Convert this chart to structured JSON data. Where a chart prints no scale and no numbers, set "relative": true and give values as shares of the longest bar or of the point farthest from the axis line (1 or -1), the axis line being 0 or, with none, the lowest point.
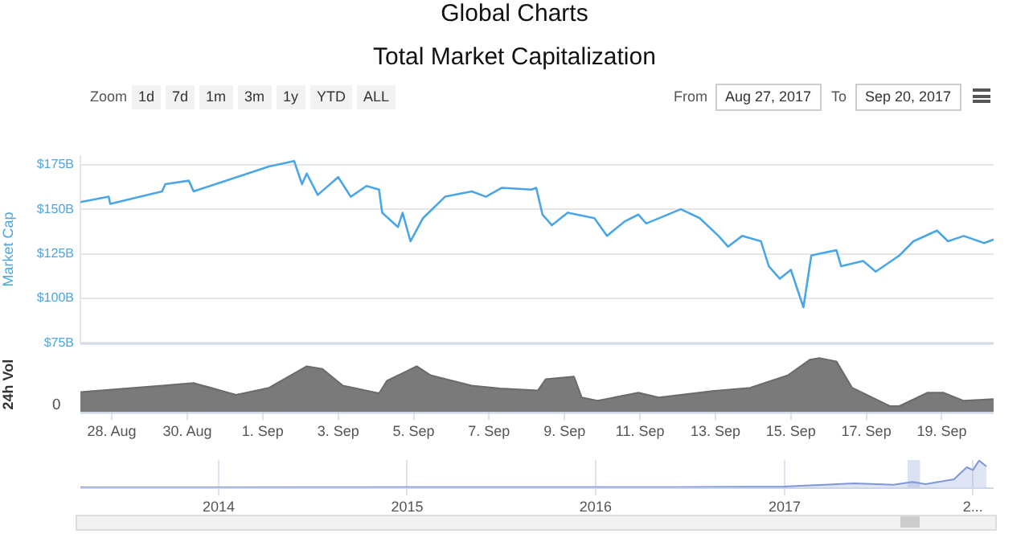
{
  "chart_data": [
    {
      "type": "line",
      "title": "Global Charts",
      "subtitle": "Total Market Capitalization",
      "ylabel": "Market Cap",
      "annotations": [
        "Zoom",
        "1d",
        "7d",
        "1m",
        "3m",
        "1y",
        "YTD",
        "ALL",
        "From",
        "Aug 27, 2017",
        "To",
        "Sep 20, 2017"
      ],
      "x": [
        "2017-08-27T04:00",
        "2017-08-27T22:00",
        "2017-08-27T23:00",
        "2017-08-29T08:00",
        "2017-08-29T10:00",
        "2017-08-30T01:00",
        "2017-08-30T04:00",
        "2017-08-31T04:00",
        "2017-09-01T04:00",
        "2017-09-01T20:00",
        "2017-09-02T01:00",
        "2017-09-02T04:00",
        "2017-09-02T11:00",
        "2017-09-03T00:00",
        "2017-09-03T08:00",
        "2017-09-03T18:00",
        "2017-09-04T02:00",
        "2017-09-04T04:00",
        "2017-09-04T14:00",
        "2017-09-04T17:00",
        "2017-09-04T22:00",
        "2017-09-05T06:00",
        "2017-09-05T20:00",
        "2017-09-06T13:00",
        "2017-09-06T22:00",
        "2017-09-07T08:00",
        "2017-09-08T03:00",
        "2017-09-08T06:00",
        "2017-09-08T10:00",
        "2017-09-08T16:00",
        "2017-09-09T02:00",
        "2017-09-09T19:00",
        "2017-09-10T03:00",
        "2017-09-10T14:00",
        "2017-09-10T23:00",
        "2017-09-11T04:00",
        "2017-09-12T02:00",
        "2017-09-12T14:00",
        "2017-09-13T02:00",
        "2017-09-13T08:00",
        "2017-09-13T17:00",
        "2017-09-14T05:00",
        "2017-09-14T10:00",
        "2017-09-14T17:00",
        "2017-09-15T00:00",
        "2017-09-15T08:00",
        "2017-09-15T13:00",
        "2017-09-15T18:00",
        "2017-09-16T05:00",
        "2017-09-16T08:00",
        "2017-09-16T22:00",
        "2017-09-17T06:00",
        "2017-09-17T21:00",
        "2017-09-18T06:00",
        "2017-09-18T21:00",
        "2017-09-19T04:00",
        "2017-09-19T14:00",
        "2017-09-20T03:00",
        "2017-09-20T09:00"
      ],
      "series": [
        {
          "color": "#4aa6e6",
          "values": [
            154,
            157,
            153,
            160,
            164,
            166,
            160,
            167,
            174,
            177,
            164,
            170,
            158,
            168,
            157,
            163,
            161,
            148,
            140,
            148,
            132,
            145,
            157,
            160,
            157,
            162,
            161,
            162,
            147,
            141,
            148,
            145,
            135,
            143,
            147,
            142,
            150,
            145,
            135,
            129,
            135,
            132,
            118,
            111,
            116,
            95,
            124,
            125,
            127,
            118,
            121,
            115,
            124,
            132,
            138,
            132,
            135,
            131,
            133
          ]
        }
      ],
      "xlim": [
        "2017-08-27T04:00",
        "2017-09-20T09:00"
      ],
      "ylim": [
        75,
        180
      ],
      "yticks": [
        {
          "value": 75,
          "label": "$75B"
        },
        {
          "value": 100,
          "label": "$100B"
        },
        {
          "value": 125,
          "label": "$125B"
        },
        {
          "value": 150,
          "label": "$150B"
        },
        {
          "value": 175,
          "label": "$175B"
        }
      ],
      "grid": "y",
      "legend": false,
      "tick_labels": "y",
      "marker": "none"
    },
    {
      "type": "area",
      "ylabel": "24h Vol",
      "annotations": [
        "0"
      ],
      "relative": true,
      "x": [
        "2017-08-27T04:00",
        "2017-08-29T08:00",
        "2017-08-30T04:00",
        "2017-08-31T07:00",
        "2017-09-01T04:00",
        "2017-09-02T04:00",
        "2017-09-02T14:00",
        "2017-09-03T03:00",
        "2017-09-04T02:00",
        "2017-09-04T07:00",
        "2017-09-05T02:00",
        "2017-09-05T11:00",
        "2017-09-06T13:00",
        "2017-09-07T07:00",
        "2017-09-08T07:00",
        "2017-09-08T12:00",
        "2017-09-09T06:00",
        "2017-09-09T11:00",
        "2017-09-09T21:00",
        "2017-09-10T23:00",
        "2017-09-11T12:00",
        "2017-09-12T22:00",
        "2017-09-13T22:00",
        "2017-09-14T22:00",
        "2017-09-15T12:00",
        "2017-09-15T18:00",
        "2017-09-16T05:00",
        "2017-09-16T15:00",
        "2017-09-17T15:00",
        "2017-09-17T21:00",
        "2017-09-18T15:00",
        "2017-09-19T01:00",
        "2017-09-19T14:00",
        "2017-09-20T09:00"
      ],
      "series": [
        {
          "color": "#6b6b6b",
          "values": [
            0.37,
            0.49,
            0.54,
            0.32,
            0.45,
            0.85,
            0.8,
            0.49,
            0.35,
            0.58,
            0.85,
            0.68,
            0.49,
            0.44,
            0.4,
            0.61,
            0.66,
            0.27,
            0.21,
            0.36,
            0.27,
            0.39,
            0.45,
            0.68,
            0.97,
            1,
            0.94,
            0.45,
            0.11,
            0.11,
            0.36,
            0.36,
            0.21,
            0.24
          ]
        }
      ],
      "xlim": [
        "2017-08-27T04:00",
        "2017-09-20T09:00"
      ],
      "xticks": [
        {
          "value": "2017-08-28",
          "label": "28. Aug"
        },
        {
          "value": "2017-08-30",
          "label": "30. Aug"
        },
        {
          "value": "2017-09-01",
          "label": "1. Sep"
        },
        {
          "value": "2017-09-03",
          "label": "3. Sep"
        },
        {
          "value": "2017-09-05",
          "label": "5. Sep"
        },
        {
          "value": "2017-09-07",
          "label": "7. Sep"
        },
        {
          "value": "2017-09-09",
          "label": "9. Sep"
        },
        {
          "value": "2017-09-11",
          "label": "11. Sep"
        },
        {
          "value": "2017-09-13",
          "label": "13. Sep"
        },
        {
          "value": "2017-09-15",
          "label": "15. Sep"
        },
        {
          "value": "2017-09-17",
          "label": "17. Sep"
        },
        {
          "value": "2017-09-19",
          "label": "19. Sep"
        }
      ],
      "legend": false,
      "marker": "none"
    },
    {
      "type": "area",
      "relative": true,
      "x": [
        "2013-04-08",
        "2016-06-01",
        "2017-01-01",
        "2017-05-15",
        "2017-07-31",
        "2017-09-06",
        "2017-10-01",
        "2017-11-25",
        "2017-12-20",
        "2018-01-01",
        "2018-01-13",
        "2018-01-27"
      ],
      "series": [
        {
          "color": "#7f97d9",
          "values": [
            0,
            0.01,
            0.03,
            0.15,
            0.1,
            0.2,
            0.12,
            0.3,
            0.75,
            0.65,
            1,
            0.78
          ]
        }
      ],
      "xlim": [
        "2013-04-08",
        "2018-02-10"
      ],
      "xticks": [
        {
          "value": "2014",
          "label": "2014"
        },
        {
          "value": "2015",
          "label": "2015"
        },
        {
          "value": "2016",
          "label": "2016"
        },
        {
          "value": "2017",
          "label": "2017"
        },
        {
          "value": "2018",
          "label": "2..."
        }
      ],
      "bands": [
        {
          "axis": "x",
          "from": "2017-08-27T04:00",
          "to": "2017-09-20T09:00",
          "color": "#ccd6eb"
        }
      ],
      "grid": "x",
      "legend": false,
      "tick_labels": "x",
      "marker": "none"
    }
  ]
}
